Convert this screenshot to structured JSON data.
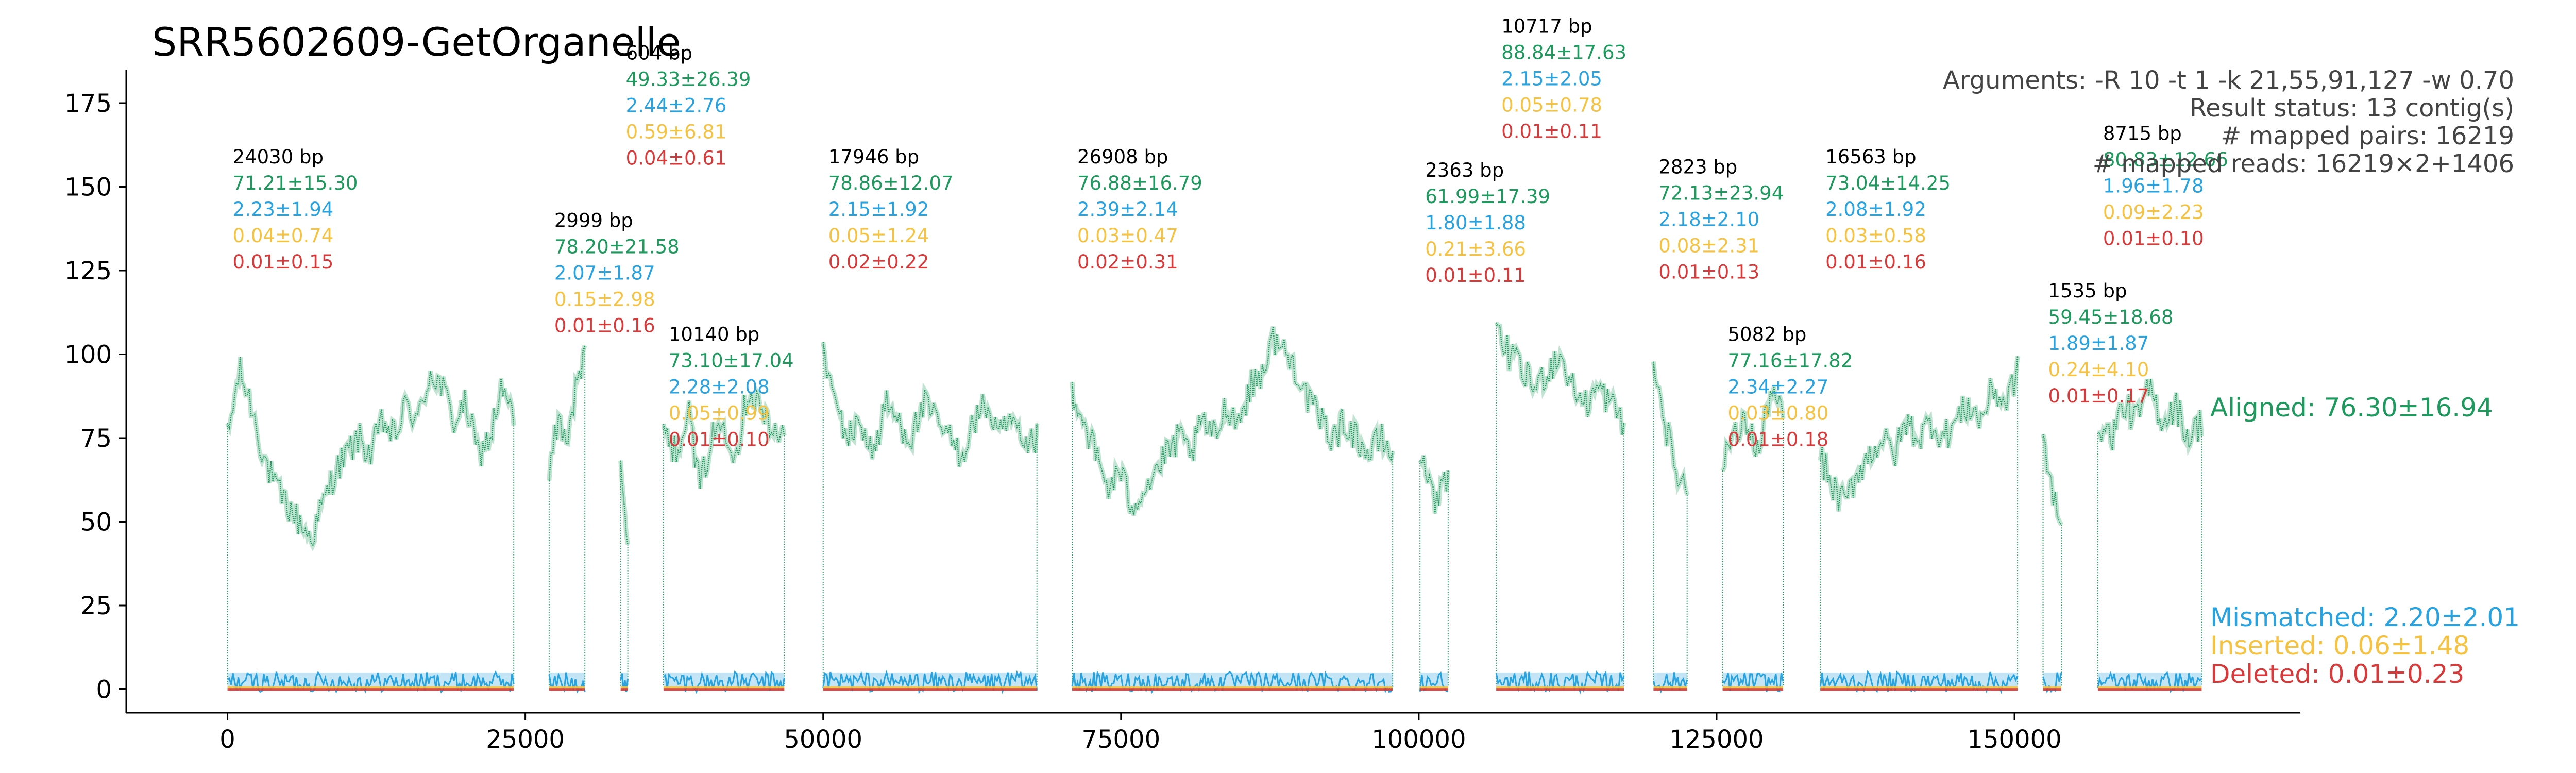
{
  "title": "SRR5602609-GetOrganelle",
  "info_lines": [
    "Arguments: -R 10 -t 1 -k 21,55,91,127 -w 0.70",
    "Result status: 13 contig(s)",
    "# mapped pairs: 16219",
    "# mapped reads: 16219×2+1406"
  ],
  "colors": {
    "aligned": "#1f9a5e",
    "mismatched": "#29a3e0",
    "inserted": "#f5c242",
    "deleted": "#d63a3a",
    "label": "#000000",
    "axis": "#000000"
  },
  "legend": {
    "aligned": "Aligned: 76.30±16.94",
    "mismatched": "Mismatched: 2.20±2.01",
    "inserted": "Inserted: 0.06±1.48",
    "deleted": "Deleted: 0.01±0.23"
  },
  "chart_data": {
    "type": "scatter",
    "xlim": [
      -8500,
      174000
    ],
    "ylim": [
      -7,
      185
    ],
    "xticks": [
      0,
      25000,
      50000,
      75000,
      100000,
      125000,
      150000
    ],
    "xtick_labels": [
      "0",
      "25000",
      "50000",
      "75000",
      "100000",
      "125000",
      "150000"
    ],
    "yticks": [
      0,
      25,
      50,
      75,
      100,
      125,
      150,
      175
    ],
    "ytick_labels": [
      "0",
      "25",
      "50",
      "75",
      "100",
      "125",
      "150",
      "175"
    ],
    "grid": false,
    "series": [
      {
        "name": "Aligned",
        "values_key": "aligned"
      },
      {
        "name": "Mismatched",
        "values_key": "mismatched"
      },
      {
        "name": "Inserted",
        "values_key": "inserted"
      },
      {
        "name": "Deleted",
        "values_key": "deleted"
      }
    ],
    "contigs": [
      {
        "start": 0,
        "end": 24030,
        "length": "24030 bp",
        "aligned": "71.21±15.30",
        "mismatched": "2.23±1.94",
        "inserted": "0.04±0.74",
        "deleted": "0.01±0.15",
        "label_y": 157,
        "profile": [
          75,
          95,
          85,
          70,
          60,
          55,
          50,
          45,
          55,
          65,
          70,
          75,
          70,
          80,
          75,
          85,
          80,
          95,
          90,
          80,
          85,
          70,
          75,
          90,
          80
        ]
      },
      {
        "start": 27000,
        "end": 29999,
        "length": "2999 bp",
        "aligned": "78.20±21.58",
        "mismatched": "2.07±1.87",
        "inserted": "0.15±2.98",
        "deleted": "0.01±0.16",
        "label_y": 138,
        "profile": [
          65,
          80,
          75,
          90,
          100
        ]
      },
      {
        "start": 33000,
        "end": 33604,
        "length": "604 bp",
        "aligned": "49.33±26.39",
        "mismatched": "2.44±2.76",
        "inserted": "0.59±6.81",
        "deleted": "0.04±0.61",
        "label_y": 188,
        "profile": [
          70,
          55,
          40
        ]
      },
      {
        "start": 36600,
        "end": 46740,
        "length": "10140 bp",
        "aligned": "73.10±17.04",
        "mismatched": "2.28±2.08",
        "inserted": "0.05±0.99",
        "deleted": "0.01±0.10",
        "label_y": 104,
        "profile": [
          80,
          70,
          85,
          60,
          75,
          80,
          70,
          90,
          85,
          75,
          80
        ]
      },
      {
        "start": 50000,
        "end": 67946,
        "length": "17946 bp",
        "aligned": "78.86±12.07",
        "mismatched": "2.15±1.92",
        "inserted": "0.05±1.24",
        "deleted": "0.02±0.22",
        "label_y": 157,
        "profile": [
          100,
          85,
          75,
          80,
          70,
          85,
          80,
          75,
          85,
          80,
          75,
          70,
          80,
          85,
          75,
          80,
          70,
          75
        ]
      },
      {
        "start": 70900,
        "end": 97808,
        "length": "26908 bp",
        "aligned": "76.88±16.79",
        "mismatched": "2.39±2.14",
        "inserted": "0.03±0.47",
        "deleted": "0.02±0.31",
        "label_y": 157,
        "profile": [
          90,
          80,
          70,
          60,
          65,
          55,
          60,
          65,
          70,
          75,
          70,
          80,
          75,
          85,
          80,
          90,
          95,
          105,
          100,
          95,
          85,
          80,
          75,
          80,
          75,
          70,
          75,
          70
        ]
      },
      {
        "start": 100100,
        "end": 102463,
        "length": "2363 bp",
        "aligned": "61.99±17.39",
        "mismatched": "1.80±1.88",
        "inserted": "0.21±3.66",
        "deleted": "0.01±0.11",
        "label_y": 153,
        "profile": [
          70,
          55,
          65
        ]
      },
      {
        "start": 106500,
        "end": 117217,
        "length": "10717 bp",
        "aligned": "88.84±17.63",
        "mismatched": "2.15±2.05",
        "inserted": "0.05±0.78",
        "deleted": "0.01±0.11",
        "label_y": 196,
        "profile": [
          105,
          100,
          95,
          90,
          95,
          100,
          90,
          85,
          90,
          85,
          80
        ]
      },
      {
        "start": 119700,
        "end": 122523,
        "length": "2823 bp",
        "aligned": "72.13±23.94",
        "mismatched": "2.18±2.10",
        "inserted": "0.08±2.31",
        "deleted": "0.01±0.13",
        "label_y": 154,
        "profile": [
          100,
          80,
          65,
          60
        ]
      },
      {
        "start": 125500,
        "end": 130582,
        "length": "5082 bp",
        "aligned": "77.16±17.82",
        "mismatched": "2.34±2.27",
        "inserted": "0.03±0.80",
        "deleted": "0.01±0.18",
        "label_y": 104,
        "profile": [
          70,
          75,
          80,
          70,
          90,
          80
        ]
      },
      {
        "start": 133700,
        "end": 150263,
        "length": "16563 bp",
        "aligned": "73.04±14.25",
        "mismatched": "2.08±1.92",
        "inserted": "0.03±0.58",
        "deleted": "0.01±0.16",
        "label_y": 157,
        "profile": [
          70,
          60,
          55,
          65,
          70,
          75,
          70,
          80,
          75,
          80,
          75,
          80,
          85,
          80,
          90,
          85,
          95
        ]
      },
      {
        "start": 152400,
        "end": 153935,
        "length": "1535 bp",
        "aligned": "59.45±18.68",
        "mismatched": "1.89±1.87",
        "inserted": "0.24±4.10",
        "deleted": "0.01±0.17",
        "label_y": 117,
        "profile": [
          75,
          60,
          45
        ]
      },
      {
        "start": 157000,
        "end": 165715,
        "length": "8715 bp",
        "aligned": "80.83±12.66",
        "mismatched": "1.96±1.78",
        "inserted": "0.09±2.23",
        "deleted": "0.01±0.10",
        "label_y": 164,
        "profile": [
          80,
          75,
          85,
          80,
          90,
          80,
          85,
          75,
          80
        ]
      }
    ]
  }
}
